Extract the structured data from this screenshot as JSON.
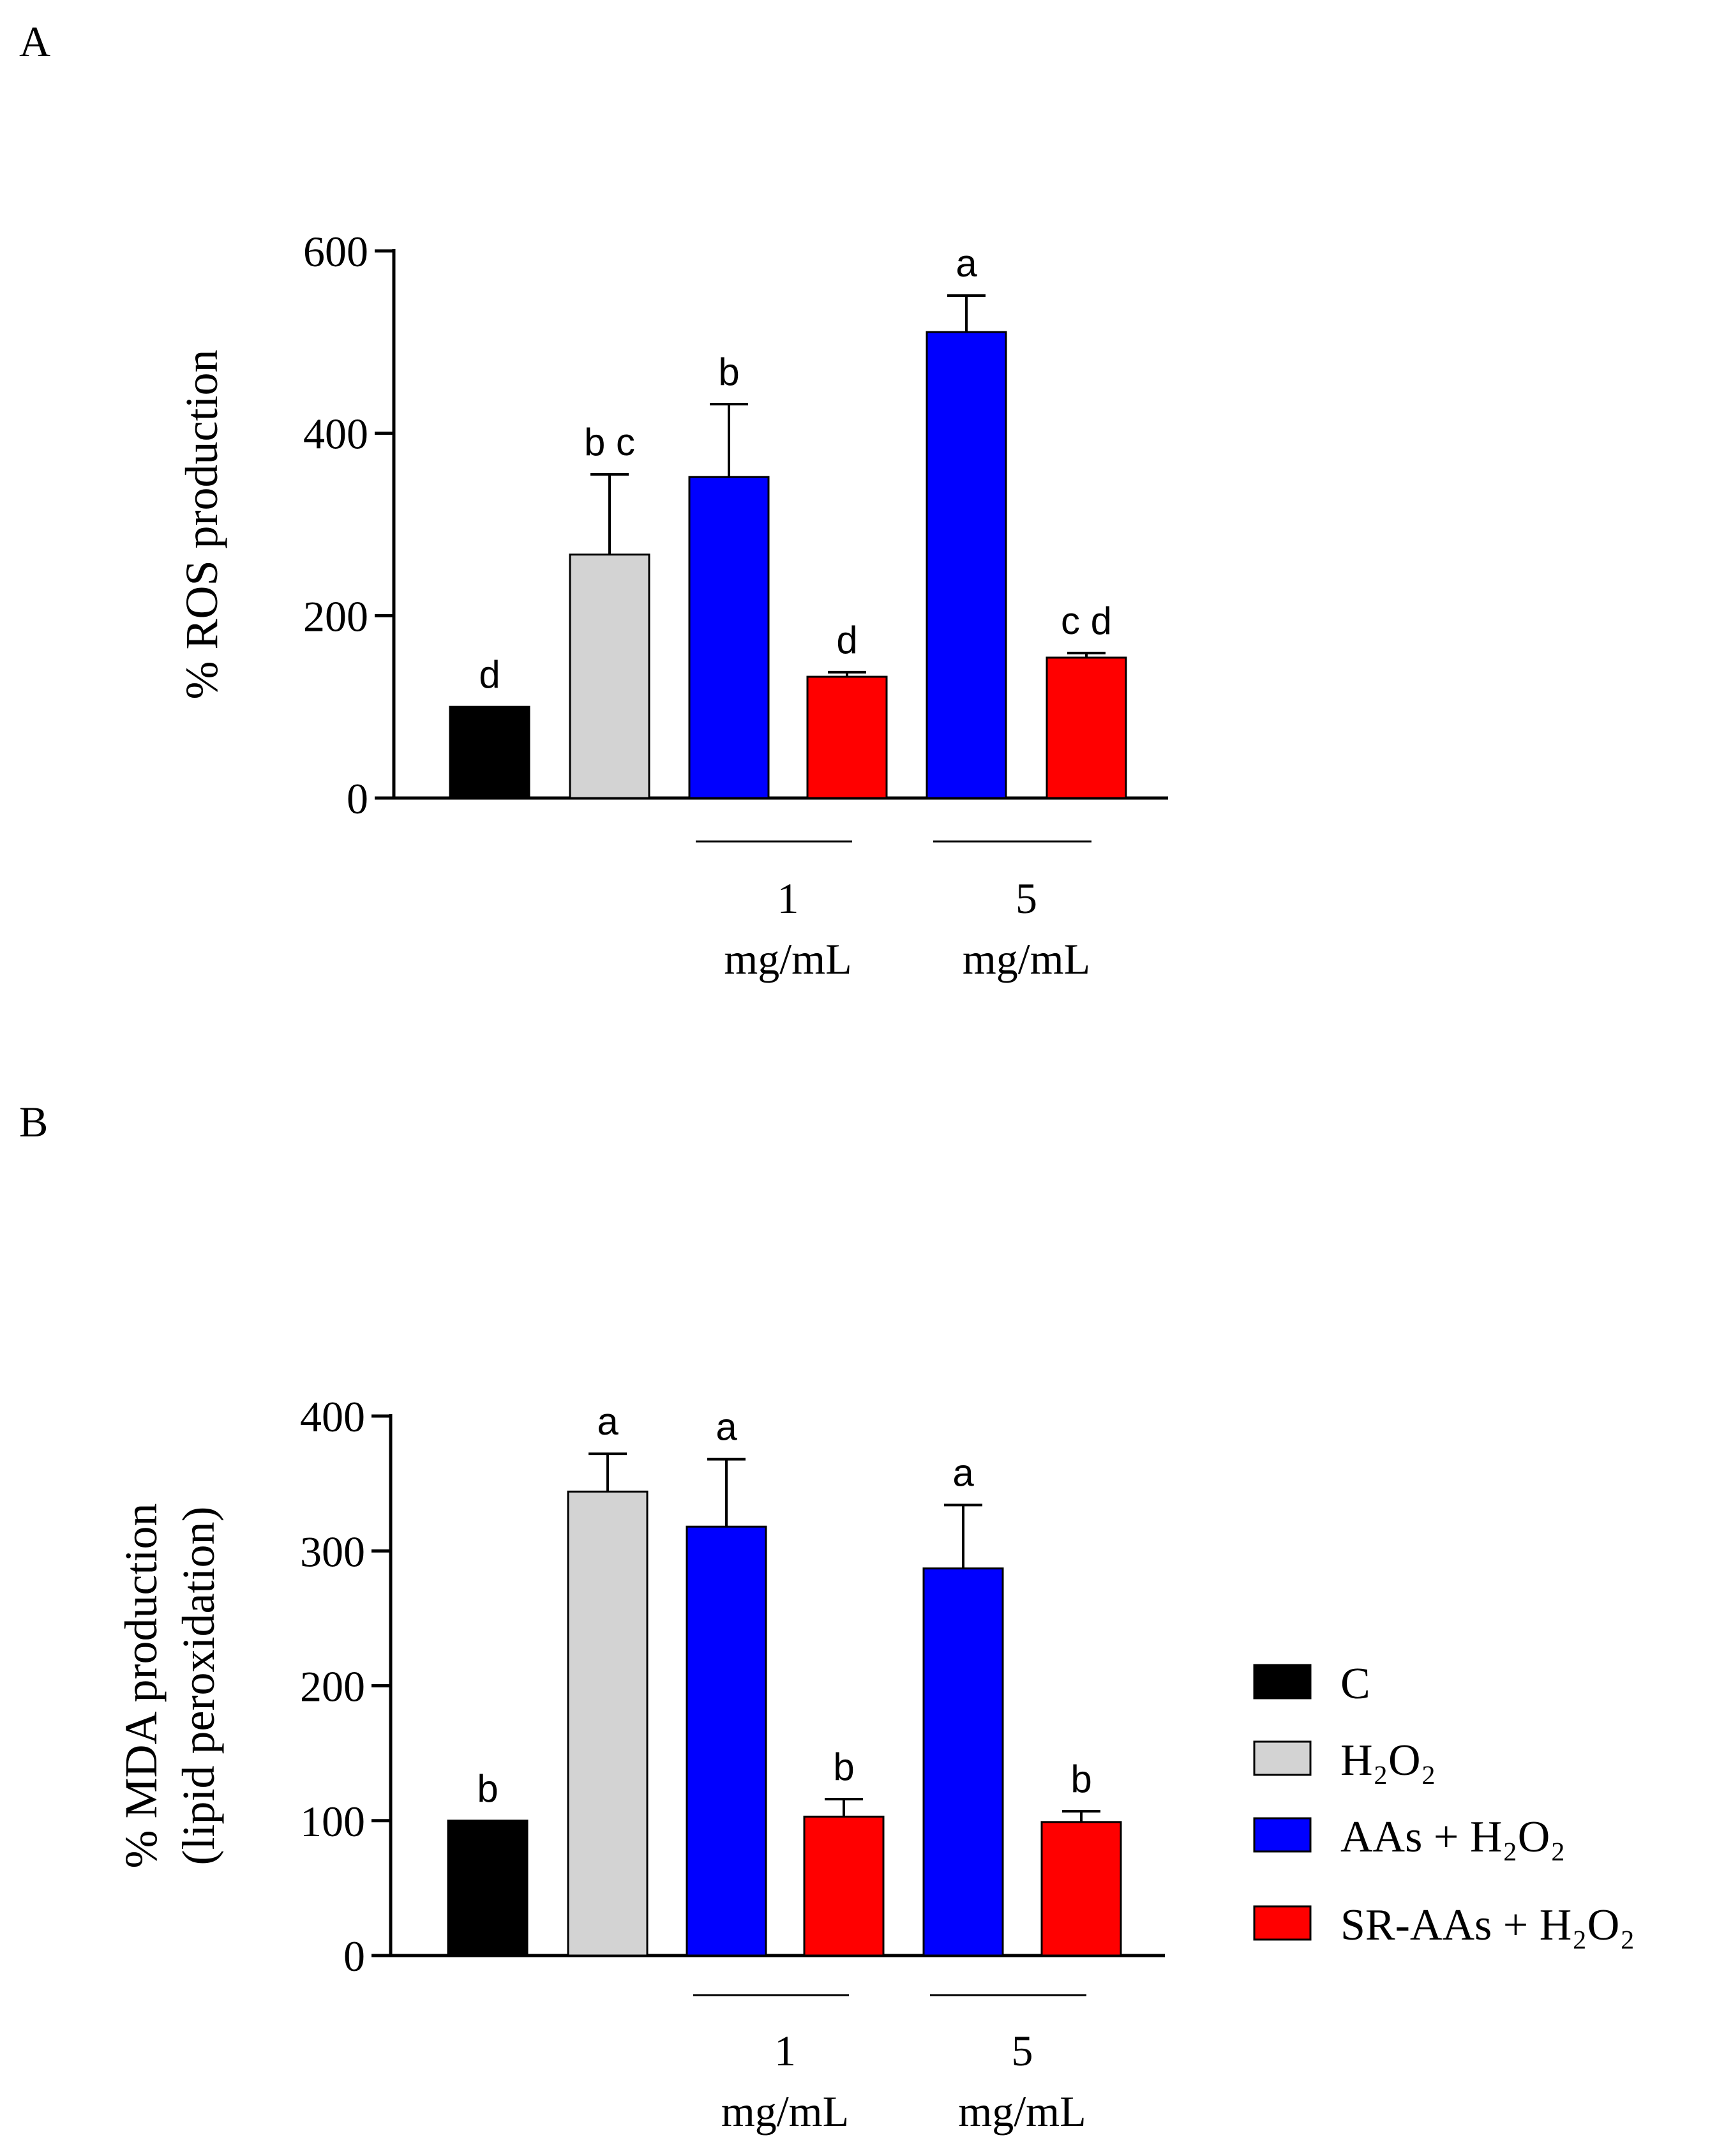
{
  "legend": {
    "entries": [
      {
        "label": "C",
        "color": "#000000"
      },
      {
        "label": "H₂O₂",
        "color": "#d3d3d3"
      },
      {
        "label": "AAs + H₂O₂",
        "color": "#0000ff"
      },
      {
        "label": "SR-AAs + H₂O₂",
        "color": "#ff0000"
      }
    ],
    "placement": "right of panel B"
  },
  "chart_data": [
    {
      "panel": "A",
      "type": "bar",
      "ylabel": "% ROS production",
      "ylim": [
        0,
        600
      ],
      "yticks": [
        0,
        200,
        400,
        600
      ],
      "categories": [
        "C",
        "H₂O₂",
        "AAs + H₂O₂ 1 mg/mL",
        "SR-AAs + H₂O₂ 1 mg/mL",
        "AAs + H₂O₂ 5 mg/mL",
        "SR-AAs + H₂O₂ 5 mg/mL"
      ],
      "colors": [
        "#000000",
        "#d3d3d3",
        "#0000ff",
        "#ff0000",
        "#0000ff",
        "#ff0000"
      ],
      "values": [
        100,
        267,
        352,
        133,
        511,
        154
      ],
      "errors": [
        0,
        88,
        80,
        5,
        40,
        5
      ],
      "letters": [
        "d",
        "b c",
        "b",
        "d",
        "a",
        "c d"
      ],
      "groups": [
        {
          "value": "1",
          "unit": "mg/mL",
          "bars": [
            2,
            3
          ]
        },
        {
          "value": "5",
          "unit": "mg/mL",
          "bars": [
            4,
            5
          ]
        }
      ]
    },
    {
      "panel": "B",
      "type": "bar",
      "ylabel_line1": "% MDA production",
      "ylabel_line2": "(lipid peroxidation)",
      "ylim": [
        0,
        400
      ],
      "yticks": [
        0,
        100,
        200,
        300,
        400
      ],
      "categories": [
        "C",
        "H₂O₂",
        "AAs + H₂O₂ 1 mg/mL",
        "SR-AAs + H₂O₂ 1 mg/mL",
        "AAs + H₂O₂ 5 mg/mL",
        "SR-AAs + H₂O₂ 5 mg/mL"
      ],
      "colors": [
        "#000000",
        "#d3d3d3",
        "#0000ff",
        "#ff0000",
        "#0000ff",
        "#ff0000"
      ],
      "values": [
        100,
        344,
        318,
        103,
        287,
        99
      ],
      "errors": [
        0,
        28,
        50,
        13,
        47,
        8
      ],
      "letters": [
        "b",
        "a",
        "a",
        "b",
        "a",
        "b"
      ],
      "groups": [
        {
          "value": "1",
          "unit": "mg/mL",
          "bars": [
            2,
            3
          ]
        },
        {
          "value": "5",
          "unit": "mg/mL",
          "bars": [
            4,
            5
          ]
        }
      ]
    }
  ]
}
